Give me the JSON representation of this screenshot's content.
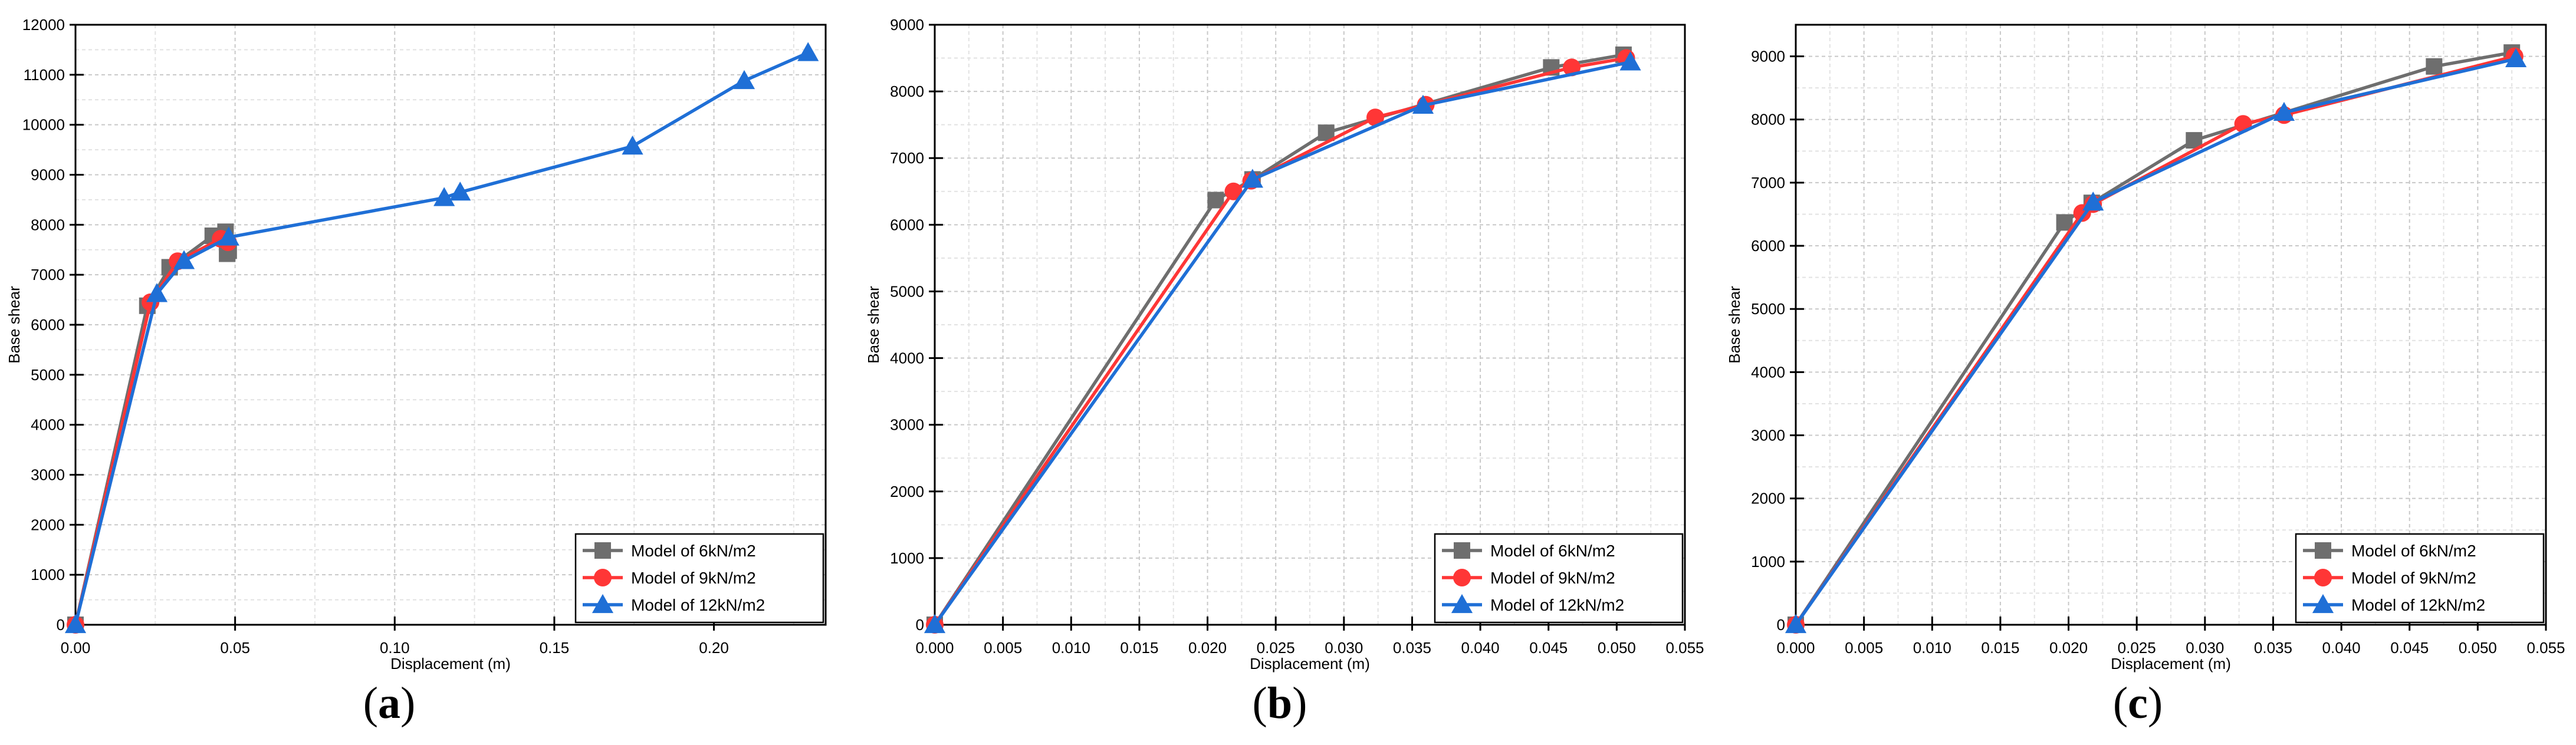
{
  "figure": {
    "colors": {
      "model_6": "#6e6e6e",
      "model_9": "#ff3636",
      "model_12": "#1f6fd6"
    }
  },
  "chart_data": [
    {
      "type": "line",
      "panel_label": "a",
      "caption": {
        "open": "(",
        "letter": "a",
        "close": ")"
      },
      "xlabel": "Displacement (m)",
      "ylabel": "Base shear",
      "xlim": [
        0,
        0.235
      ],
      "ylim": [
        0,
        12000
      ],
      "xticks": [
        0,
        0.05,
        0.1,
        0.15,
        0.2
      ],
      "xtick_labels": [
        "0.00",
        "0.05",
        "0.10",
        "0.15",
        "0.20"
      ],
      "yticks": [
        0,
        1000,
        2000,
        3000,
        4000,
        5000,
        6000,
        7000,
        8000,
        9000,
        10000,
        11000,
        12000
      ],
      "ytick_labels": [
        "0",
        "1000",
        "2000",
        "3000",
        "4000",
        "5000",
        "6000",
        "7000",
        "8000",
        "9000",
        "10000",
        "11000",
        "12000"
      ],
      "grid": true,
      "legend_position": "bottom-right",
      "series": [
        {
          "name": "Model of 6kN/m2",
          "marker": "square",
          "color": "#6e6e6e",
          "x": [
            0,
            0.0225,
            0.0295,
            0.043,
            0.047,
            0.0475,
            0.048
          ],
          "y": [
            0,
            6380,
            7150,
            7780,
            7860,
            7420,
            7480
          ]
        },
        {
          "name": "Model of 9kN/m2",
          "marker": "circle",
          "color": "#ff3636",
          "x": [
            0,
            0.0235,
            0.032,
            0.0455,
            0.0478
          ],
          "y": [
            0,
            6450,
            7270,
            7720,
            7650
          ]
        },
        {
          "name": "Model of 12kN/m2",
          "marker": "triangle",
          "color": "#1f6fd6",
          "x": [
            0,
            0.0255,
            0.034,
            0.048,
            0.1155,
            0.1205,
            0.1745,
            0.2095,
            0.2295
          ],
          "y": [
            0,
            6620,
            7280,
            7750,
            8540,
            8650,
            9570,
            10880,
            11440
          ]
        }
      ]
    },
    {
      "type": "line",
      "panel_label": "b",
      "caption": {
        "open": "(",
        "letter": "b",
        "close": ")"
      },
      "xlabel": "Displacement (m)",
      "ylabel": "Base shear",
      "xlim": [
        0,
        0.055
      ],
      "ylim": [
        0,
        9000
      ],
      "xticks": [
        0,
        0.005,
        0.01,
        0.015,
        0.02,
        0.025,
        0.03,
        0.035,
        0.04,
        0.045,
        0.05,
        0.055
      ],
      "xtick_labels": [
        "0.000",
        "0.005",
        "0.010",
        "0.015",
        "0.020",
        "0.025",
        "0.030",
        "0.035",
        "0.040",
        "0.045",
        "0.050",
        "0.055"
      ],
      "yticks": [
        0,
        1000,
        2000,
        3000,
        4000,
        5000,
        6000,
        7000,
        8000,
        9000
      ],
      "ytick_labels": [
        "0",
        "1000",
        "2000",
        "3000",
        "4000",
        "5000",
        "6000",
        "7000",
        "8000",
        "9000"
      ],
      "grid": true,
      "legend_position": "bottom-right",
      "series": [
        {
          "name": "Model of 6kN/m2",
          "marker": "square",
          "color": "#6e6e6e",
          "x": [
            0,
            0.0206,
            0.0233,
            0.0287,
            0.0452,
            0.0505
          ],
          "y": [
            0,
            6370,
            6680,
            7380,
            8360,
            8550
          ]
        },
        {
          "name": "Model of 9kN/m2",
          "marker": "circle",
          "color": "#ff3636",
          "x": [
            0,
            0.0219,
            0.0232,
            0.0323,
            0.036,
            0.0467,
            0.0507
          ],
          "y": [
            0,
            6500,
            6660,
            7610,
            7800,
            8360,
            8500
          ]
        },
        {
          "name": "Model of 12kN/m2",
          "marker": "triangle",
          "color": "#1f6fd6",
          "x": [
            0,
            0.0233,
            0.0358,
            0.051
          ],
          "y": [
            0,
            6680,
            7790,
            8440
          ]
        }
      ]
    },
    {
      "type": "line",
      "panel_label": "c",
      "caption": {
        "open": "(",
        "letter": "c",
        "close": ")"
      },
      "xlabel": "Displacement (m)",
      "ylabel": "Base shear",
      "xlim": [
        0,
        0.055
      ],
      "ylim": [
        0,
        9500
      ],
      "xticks": [
        0,
        0.005,
        0.01,
        0.015,
        0.02,
        0.025,
        0.03,
        0.035,
        0.04,
        0.045,
        0.05,
        0.055
      ],
      "xtick_labels": [
        "0.000",
        "0.005",
        "0.010",
        "0.015",
        "0.020",
        "0.025",
        "0.030",
        "0.035",
        "0.040",
        "0.045",
        "0.050",
        "0.055"
      ],
      "yticks": [
        0,
        1000,
        2000,
        3000,
        4000,
        5000,
        6000,
        7000,
        8000,
        9000
      ],
      "ytick_labels": [
        "0",
        "1000",
        "2000",
        "3000",
        "4000",
        "5000",
        "6000",
        "7000",
        "8000",
        "9000"
      ],
      "grid": true,
      "legend_position": "bottom-right",
      "series": [
        {
          "name": "Model of 6kN/m2",
          "marker": "square",
          "color": "#6e6e6e",
          "x": [
            0,
            0.0197,
            0.0217,
            0.0292,
            0.0468,
            0.0525
          ],
          "y": [
            0,
            6370,
            6680,
            7670,
            8840,
            9060
          ]
        },
        {
          "name": "Model of 9kN/m2",
          "marker": "circle",
          "color": "#ff3636",
          "x": [
            0,
            0.021,
            0.0218,
            0.0328,
            0.0358,
            0.0527
          ],
          "y": [
            0,
            6520,
            6660,
            7930,
            8070,
            9000
          ]
        },
        {
          "name": "Model of 12kN/m2",
          "marker": "triangle",
          "color": "#1f6fd6",
          "x": [
            0,
            0.0218,
            0.0358,
            0.0528
          ],
          "y": [
            0,
            6690,
            8110,
            8960
          ]
        }
      ]
    }
  ]
}
